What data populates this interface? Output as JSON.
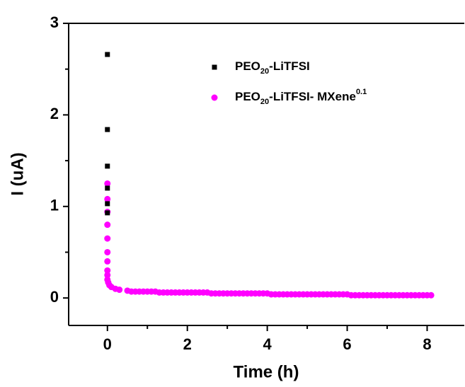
{
  "chart_data": {
    "type": "scatter",
    "xlabel": "Time (h)",
    "ylabel": "I (uA)",
    "xlim": [
      -0.97,
      8.93
    ],
    "ylim": [
      -0.3,
      3.0
    ],
    "xticks": [
      0,
      2,
      4,
      6,
      8
    ],
    "yticks": [
      0,
      1,
      2,
      3
    ],
    "series": [
      {
        "name": "PEO20-LiTFSI",
        "color": "#000000",
        "marker": "square",
        "x": [
          0,
          0,
          0,
          0,
          0,
          0
        ],
        "values": [
          2.66,
          1.84,
          1.44,
          1.2,
          1.03,
          0.93
        ]
      },
      {
        "name": "PEO20-LiTFSI- MXene0.1",
        "color": "#ff00ff",
        "marker": "circle",
        "x": [
          0,
          0,
          0,
          0,
          0,
          0,
          0,
          0,
          0,
          0,
          0.02,
          0.05,
          0.1,
          0.2,
          0.3,
          0.5,
          0.6,
          0.7,
          0.8,
          0.9,
          1.0,
          1.1,
          1.2,
          1.3,
          1.4,
          1.5,
          1.6,
          1.7,
          1.8,
          1.9,
          2.0,
          2.1,
          2.2,
          2.3,
          2.4,
          2.5,
          2.6,
          2.7,
          2.8,
          2.9,
          3.0,
          3.1,
          3.2,
          3.3,
          3.4,
          3.5,
          3.6,
          3.7,
          3.8,
          3.9,
          4.0,
          4.1,
          4.2,
          4.3,
          4.4,
          4.5,
          4.6,
          4.7,
          4.8,
          4.9,
          5.0,
          5.1,
          5.2,
          5.3,
          5.4,
          5.5,
          5.6,
          5.7,
          5.8,
          5.9,
          6.0,
          6.1,
          6.2,
          6.3,
          6.4,
          6.5,
          6.6,
          6.7,
          6.8,
          6.9,
          7.0,
          7.1,
          7.2,
          7.3,
          7.4,
          7.5,
          7.6,
          7.7,
          7.8,
          7.9,
          8.0,
          8.1
        ],
        "values": [
          1.25,
          1.08,
          0.94,
          0.8,
          0.65,
          0.5,
          0.4,
          0.3,
          0.25,
          0.2,
          0.17,
          0.14,
          0.12,
          0.1,
          0.09,
          0.08,
          0.07,
          0.07,
          0.07,
          0.07,
          0.07,
          0.07,
          0.07,
          0.06,
          0.06,
          0.06,
          0.06,
          0.06,
          0.06,
          0.06,
          0.06,
          0.06,
          0.06,
          0.06,
          0.06,
          0.06,
          0.05,
          0.05,
          0.05,
          0.05,
          0.05,
          0.05,
          0.05,
          0.05,
          0.05,
          0.05,
          0.05,
          0.05,
          0.05,
          0.05,
          0.05,
          0.04,
          0.04,
          0.04,
          0.04,
          0.04,
          0.04,
          0.04,
          0.04,
          0.04,
          0.04,
          0.04,
          0.04,
          0.04,
          0.04,
          0.04,
          0.04,
          0.04,
          0.04,
          0.04,
          0.04,
          0.03,
          0.03,
          0.03,
          0.03,
          0.03,
          0.03,
          0.03,
          0.03,
          0.03,
          0.03,
          0.03,
          0.03,
          0.03,
          0.03,
          0.03,
          0.03,
          0.03,
          0.03,
          0.03,
          0.03,
          0.03
        ]
      }
    ]
  }
}
